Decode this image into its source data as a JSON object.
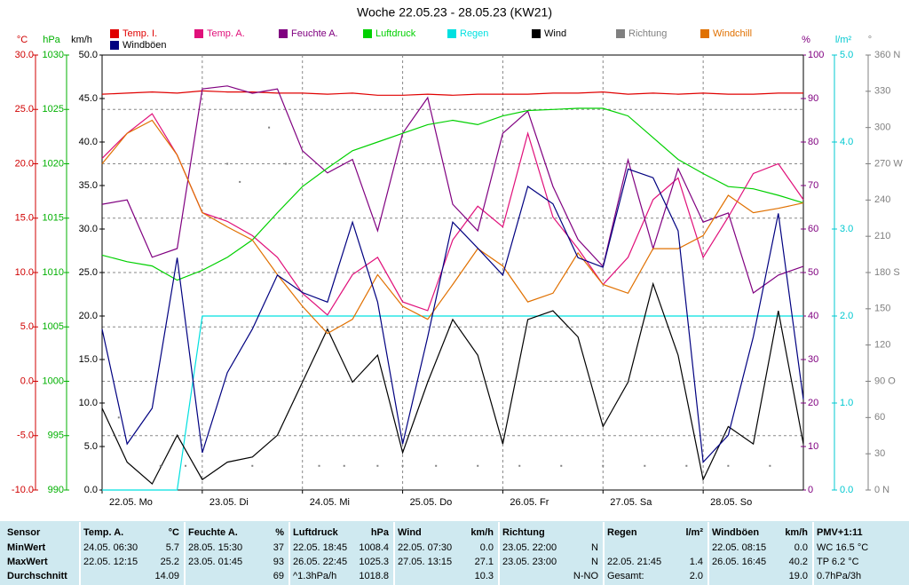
{
  "chart_data": {
    "type": "line",
    "title": "Woche 22.05.23 - 28.05.23 (KW21)",
    "x": [
      0,
      6,
      12,
      18,
      24,
      30,
      36,
      42,
      48,
      54,
      60,
      66,
      72,
      78,
      84,
      90,
      96,
      102,
      108,
      114,
      120,
      126,
      132,
      138,
      144,
      150,
      156,
      162,
      168
    ],
    "xlim": [
      0,
      168
    ],
    "xticks": [
      {
        "value": 0,
        "label": "22.05.  Mo"
      },
      {
        "value": 24,
        "label": "23.05.  Di"
      },
      {
        "value": 48,
        "label": "24.05.  Mi"
      },
      {
        "value": 72,
        "label": "25.05.  Do"
      },
      {
        "value": 96,
        "label": "26.05.  Fr"
      },
      {
        "value": 120,
        "label": "27.05.  Sa"
      },
      {
        "value": 144,
        "label": "28.05.  So"
      }
    ],
    "grid": true,
    "axes": [
      {
        "label": "°C",
        "color": "#d00000",
        "lim": [
          -10,
          30
        ],
        "ticks": [
          {
            "value": -10,
            "label": "-10.0"
          },
          {
            "value": -5,
            "label": "-5.0"
          },
          {
            "value": 0,
            "label": "0.0"
          },
          {
            "value": 5,
            "label": "5.0"
          },
          {
            "value": 10,
            "label": "10.0"
          },
          {
            "value": 15,
            "label": "15.0"
          },
          {
            "value": 20,
            "label": "20.0"
          },
          {
            "value": 25,
            "label": "25.0"
          },
          {
            "value": 30,
            "label": "30.0"
          }
        ]
      },
      {
        "label": "hPa",
        "color": "#00b000",
        "lim": [
          990,
          1030
        ],
        "ticks": [
          990,
          995,
          1000,
          1005,
          1010,
          1015,
          1020,
          1025,
          1030
        ]
      },
      {
        "label": "km/h",
        "color": "#000000",
        "lim": [
          0,
          50
        ],
        "ticks": [
          {
            "value": 0,
            "label": "0.0"
          },
          {
            "value": 5,
            "label": "5.0"
          },
          {
            "value": 10,
            "label": "10.0"
          },
          {
            "value": 15,
            "label": "15.0"
          },
          {
            "value": 20,
            "label": "20.0"
          },
          {
            "value": 25,
            "label": "25.0"
          },
          {
            "value": 30,
            "label": "30.0"
          },
          {
            "value": 35,
            "label": "35.0"
          },
          {
            "value": 40,
            "label": "40.0"
          },
          {
            "value": 45,
            "label": "45.0"
          },
          {
            "value": 50,
            "label": "50.0"
          }
        ]
      },
      {
        "label": "%",
        "color": "#800080",
        "lim": [
          0,
          100
        ],
        "ticks": [
          0,
          10,
          20,
          30,
          40,
          50,
          60,
          70,
          80,
          90,
          100
        ]
      },
      {
        "label": "l/m²",
        "color": "#00c8d0",
        "lim": [
          0,
          5
        ],
        "ticks": [
          {
            "value": 0,
            "label": "0.0"
          },
          {
            "value": 1,
            "label": "1.0"
          },
          {
            "value": 2,
            "label": "2.0"
          },
          {
            "value": 3,
            "label": "3.0"
          },
          {
            "value": 4,
            "label": "4.0"
          },
          {
            "value": 5,
            "label": "5.0"
          }
        ]
      },
      {
        "label": "°",
        "color": "#808080",
        "lim": [
          0,
          360
        ],
        "ticks": [
          {
            "value": 0,
            "label": "0 N"
          },
          30,
          60,
          {
            "value": 90,
            "label": "90 O"
          },
          120,
          150,
          {
            "value": 180,
            "label": "180 S"
          },
          210,
          240,
          {
            "value": 270,
            "label": "270 W"
          },
          300,
          330,
          {
            "value": 360,
            "label": "360 N"
          }
        ]
      }
    ],
    "series": [
      {
        "name": "Temp. I.",
        "color": "#e00000",
        "axis": 0,
        "values": [
          26.4,
          26.5,
          26.6,
          26.5,
          26.7,
          26.6,
          26.6,
          26.5,
          26.5,
          26.4,
          26.5,
          26.3,
          26.3,
          26.4,
          26.3,
          26.4,
          26.4,
          26.4,
          26.5,
          26.5,
          26.6,
          26.4,
          26.5,
          26.4,
          26.5,
          26.4,
          26.4,
          26.5,
          26.5
        ]
      },
      {
        "name": "Temp. A.",
        "color": "#e0107a",
        "axis": 0,
        "values": [
          20.5,
          22.8,
          24.6,
          20.8,
          15.5,
          14.7,
          13.4,
          11.4,
          8.1,
          6.1,
          9.8,
          11.4,
          7.3,
          6.5,
          13.0,
          16.1,
          14.2,
          22.8,
          15.1,
          12.2,
          8.9,
          11.4,
          16.7,
          18.7,
          11.4,
          15.1,
          19.1,
          20.0,
          16.7
        ]
      },
      {
        "name": "Feuchte A.",
        "color": "#800080",
        "axis": 3,
        "values": [
          65.7,
          66.7,
          53.5,
          55.5,
          92.2,
          92.9,
          91.2,
          92.2,
          78,
          72.9,
          76,
          59.6,
          82,
          90.2,
          65.7,
          59.6,
          82,
          87.1,
          69.8,
          57.6,
          51.4,
          75.9,
          55.5,
          73.9,
          61.6,
          63.7,
          45.3,
          49.4,
          51.4
        ]
      },
      {
        "name": "Luftdruck",
        "color": "#00d000",
        "axis": 1,
        "values": [
          1011.6,
          1011.0,
          1010.6,
          1009.3,
          1010.2,
          1011.4,
          1013.0,
          1015.5,
          1017.9,
          1019.6,
          1021.2,
          1022.0,
          1022.8,
          1023.6,
          1024.0,
          1023.6,
          1024.4,
          1024.9,
          1025.0,
          1025.1,
          1025.1,
          1024.4,
          1022.4,
          1020.4,
          1019.1,
          1017.9,
          1017.7,
          1017.1,
          1016.4
        ]
      },
      {
        "name": "Regen",
        "color": "#00e0e0",
        "axis": 4,
        "values": [
          0,
          0,
          0,
          0,
          2.0,
          2.0,
          2.0,
          2.0,
          2.0,
          2.0,
          2.0,
          2.0,
          2.0,
          2.0,
          2.0,
          2.0,
          2.0,
          2.0,
          2.0,
          2.0,
          2.0,
          2.0,
          2.0,
          2.0,
          2.0,
          2.0,
          2.0,
          2.0,
          2.0
        ]
      },
      {
        "name": "Wind",
        "color": "#000000",
        "axis": 2,
        "values": [
          9.4,
          3.2,
          0.7,
          6.3,
          1.2,
          3.2,
          3.8,
          6.3,
          12.4,
          18.5,
          12.4,
          15.5,
          4.3,
          12.4,
          19.6,
          15.5,
          5.3,
          19.6,
          20.6,
          17.6,
          7.3,
          12.4,
          23.7,
          15.5,
          1.2,
          7.3,
          5.3,
          20.6,
          5.3
        ]
      },
      {
        "name": "Richtung",
        "color": "#808080",
        "axis": 5,
        "x": [
          4,
          14,
          20,
          30,
          33,
          36,
          40,
          44,
          52,
          58,
          66,
          72,
          80,
          90,
          100,
          110,
          120,
          130,
          140,
          150,
          160
        ],
        "values": [
          60,
          20,
          20,
          270,
          255,
          20,
          300,
          270,
          20,
          20,
          20,
          20,
          20,
          20,
          20,
          20,
          20,
          20,
          20,
          20,
          20
        ]
      },
      {
        "name": "Windchill",
        "color": "#e07000",
        "axis": 0,
        "values": [
          20,
          22.8,
          24.0,
          20.8,
          15.5,
          14.2,
          13.0,
          9.8,
          6.9,
          4.4,
          5.7,
          9.8,
          6.9,
          5.7,
          8.9,
          12.2,
          10.6,
          7.3,
          8.1,
          11.8,
          8.9,
          8.1,
          12.2,
          12.2,
          13.4,
          17.1,
          15.5,
          15.9,
          16.4
        ]
      },
      {
        "name": "Windböen",
        "color": "#000080",
        "axis": 2,
        "values": [
          18.5,
          5.3,
          9.4,
          26.7,
          4.3,
          13.5,
          18.5,
          24.7,
          22.7,
          21.6,
          30.8,
          21.6,
          5.3,
          17.6,
          30.8,
          27.8,
          24.7,
          34.9,
          32.9,
          26.7,
          25.6,
          36.9,
          35.9,
          29.8,
          3.2,
          6.3,
          17.6,
          31.8,
          10.4
        ]
      }
    ]
  },
  "table": {
    "sensor": "Sensor",
    "row_labels": [
      "MinWert",
      "MaxWert",
      "Durchschnitt"
    ],
    "blocks": [
      {
        "name": "Temp. A.",
        "unit": "°C",
        "rows": [
          [
            "24.05.  06:30",
            "5.7"
          ],
          [
            "22.05.  12:15",
            "25.2"
          ],
          [
            null,
            "14.09"
          ]
        ]
      },
      {
        "name": "Feuchte A.",
        "unit": "%",
        "rows": [
          [
            "28.05.  15:30",
            "37"
          ],
          [
            "23.05.  01:45",
            "93"
          ],
          [
            null,
            "69"
          ]
        ]
      },
      {
        "name": "Luftdruck",
        "unit": "hPa",
        "rows": [
          [
            "22.05.  18:45",
            "1008.4"
          ],
          [
            "26.05.  22:45",
            "1025.3"
          ],
          [
            "^1.3hPa/h",
            "1018.8"
          ]
        ]
      },
      {
        "name": "Wind",
        "unit": "km/h",
        "rows": [
          [
            "22.05.  07:30",
            "0.0"
          ],
          [
            "27.05.  13:15",
            "27.1"
          ],
          [
            null,
            "10.3"
          ]
        ]
      },
      {
        "name": "Richtung",
        "unit": null,
        "rows": [
          [
            "23.05.  22:00",
            "N"
          ],
          [
            "23.05.  23:00",
            "N"
          ],
          [
            null,
            "N-NO"
          ]
        ]
      },
      {
        "name": "Regen",
        "unit": "l/m²",
        "rows": [
          [
            null,
            null
          ],
          [
            "22.05.  21:45",
            "1.4"
          ],
          [
            "Gesamt:",
            "2.0"
          ]
        ]
      },
      {
        "name": "Windböen",
        "unit": "km/h",
        "rows": [
          [
            "22.05.  08:15",
            "0.0"
          ],
          [
            "26.05.  16:45",
            "40.2"
          ],
          [
            null,
            "19.0"
          ]
        ]
      }
    ],
    "pmv": {
      "title": "PMV+1:11",
      "rows": [
        "WC 16.5 °C",
        "TP 6.2 °C",
        "0.7hPa/3h"
      ]
    }
  }
}
